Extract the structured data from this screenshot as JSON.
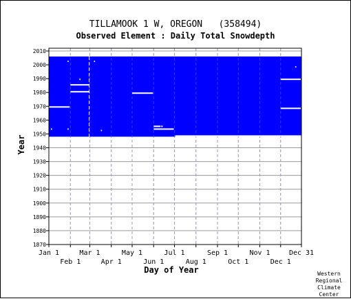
{
  "chart_data": {
    "type": "heatmap",
    "title": "TILLAMOOK 1 W, OREGON   (358494)",
    "subtitle": "Observed Element : Daily Total Snowdepth",
    "xlabel": "Day of Year",
    "ylabel": "Year",
    "xlim": [
      1,
      365
    ],
    "ylim": [
      1870,
      2012
    ],
    "y_ticks": [
      1870,
      1880,
      1890,
      1900,
      1910,
      1920,
      1930,
      1940,
      1950,
      1960,
      1970,
      1980,
      1990,
      2000,
      2010
    ],
    "x_ticks_upper": [
      {
        "label": "Jan 1",
        "day": 1
      },
      {
        "label": "Mar 1",
        "day": 60
      },
      {
        "label": "May 1",
        "day": 121
      },
      {
        "label": "Jul 1",
        "day": 182
      },
      {
        "label": "Sep 1",
        "day": 244
      },
      {
        "label": "Nov 1",
        "day": 305
      },
      {
        "label": "Dec 31",
        "day": 365
      }
    ],
    "x_ticks_lower": [
      {
        "label": "Feb 1",
        "day": 32
      },
      {
        "label": "Apr 1",
        "day": 91
      },
      {
        "label": "Jun 1",
        "day": 152
      },
      {
        "label": "Aug 1",
        "day": 213
      },
      {
        "label": "Oct 1",
        "day": 274
      },
      {
        "label": "Dec 1",
        "day": 335
      }
    ],
    "grid": true,
    "series_color": "#0000ff",
    "data_records": [
      {
        "start_year": 1948,
        "start_day": 1,
        "end_year": 2005,
        "end_day": 365,
        "status": "observed"
      }
    ],
    "missing_periods": [
      {
        "year": 2006,
        "start_day": 1,
        "end_day": 32
      },
      {
        "year": 1948,
        "start_day": 183,
        "end_day": 365
      },
      {
        "year": 1969,
        "start_day": 1,
        "end_day": 31
      },
      {
        "year": 1985,
        "start_day": 32,
        "end_day": 59
      },
      {
        "year": 1980,
        "start_day": 32,
        "end_day": 59
      },
      {
        "year": 1979,
        "start_day": 121,
        "end_day": 151
      },
      {
        "year": 1955,
        "start_day": 152,
        "end_day": 162
      },
      {
        "year": 1955,
        "start_day": 163,
        "end_day": 165
      },
      {
        "year": 1953,
        "start_day": 152,
        "end_day": 181
      },
      {
        "year": 1968,
        "start_day": 335,
        "end_day": 364
      },
      {
        "year": 1989,
        "start_day": 335,
        "end_day": 364
      },
      {
        "year": 2002,
        "start_day": 28,
        "end_day": 28
      },
      {
        "year": 2002,
        "start_day": 66,
        "end_day": 66
      },
      {
        "year": 1989,
        "start_day": 45,
        "end_day": 45
      },
      {
        "year": 1998,
        "start_day": 356,
        "end_day": 356
      },
      {
        "year": 1953,
        "start_day": 4,
        "end_day": 4
      },
      {
        "year": 1953,
        "start_day": 28,
        "end_day": 28
      },
      {
        "year": 1952,
        "start_day": 76,
        "end_day": 76
      }
    ],
    "missing_columns": [
      {
        "day": 59,
        "start_year": 1948,
        "end_year": 2005
      }
    ]
  },
  "credit": [
    "Western",
    "Regional",
    "Climate",
    "Center"
  ]
}
